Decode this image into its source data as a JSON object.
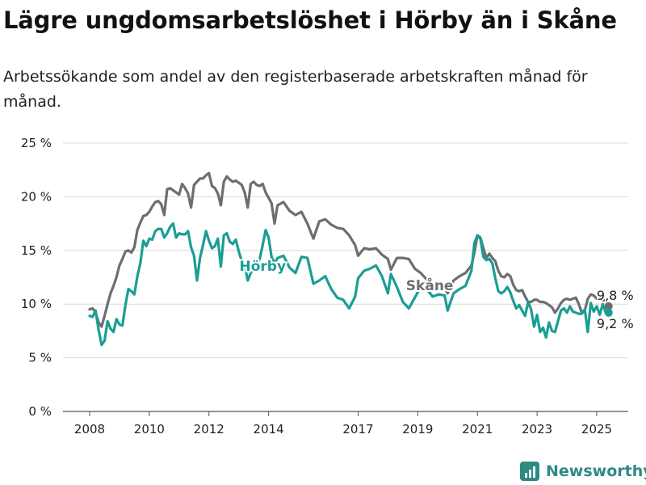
{
  "title": "Lägre ungdomsarbetslöshet i Hörby än i Skåne",
  "subtitle": "Arbetssökande som andel av den registerbaserade arbetskraften månad för månad.",
  "brand": {
    "name": "Newsworthy"
  },
  "chart_data": {
    "type": "line",
    "title": "Lägre ungdomsarbetslöshet i Hörby än i Skåne",
    "subtitle": "Arbetssökande som andel av den registerbaserade arbetskraften månad för månad.",
    "xlabel": "",
    "ylabel": "",
    "ylim": [
      0,
      25
    ],
    "xlim": [
      2007.4,
      2026.0
    ],
    "y_ticks": [
      0,
      5,
      10,
      15,
      20,
      25
    ],
    "y_tick_labels": [
      "0 %",
      "5 %",
      "10 %",
      "15 %",
      "20 %",
      "25 %"
    ],
    "x_ticks": [
      2008,
      2010,
      2012,
      2014,
      2017,
      2019,
      2021,
      2023,
      2025
    ],
    "x_tick_labels": [
      "2008",
      "2010",
      "2012",
      "2014",
      "2017",
      "2019",
      "2021",
      "2023",
      "2025"
    ],
    "grid": "horizontal",
    "legend": "inline labels",
    "series": [
      {
        "name": "Skåne",
        "color": "#6d6d72",
        "end_label": "9,8 %",
        "points": [
          [
            2008.0,
            9.5
          ],
          [
            2008.1,
            9.6
          ],
          [
            2008.2,
            9.2
          ],
          [
            2008.3,
            8.3
          ],
          [
            2008.4,
            7.9
          ],
          [
            2008.5,
            8.9
          ],
          [
            2008.6,
            10.0
          ],
          [
            2008.7,
            11.0
          ],
          [
            2008.8,
            11.7
          ],
          [
            2008.9,
            12.5
          ],
          [
            2009.0,
            13.6
          ],
          [
            2009.1,
            14.2
          ],
          [
            2009.2,
            14.9
          ],
          [
            2009.3,
            15.0
          ],
          [
            2009.4,
            14.8
          ],
          [
            2009.5,
            15.3
          ],
          [
            2009.6,
            16.9
          ],
          [
            2009.7,
            17.6
          ],
          [
            2009.8,
            18.2
          ],
          [
            2009.9,
            18.3
          ],
          [
            2010.0,
            18.6
          ],
          [
            2010.1,
            19.1
          ],
          [
            2010.2,
            19.5
          ],
          [
            2010.3,
            19.6
          ],
          [
            2010.4,
            19.3
          ],
          [
            2010.5,
            18.3
          ],
          [
            2010.6,
            20.7
          ],
          [
            2010.7,
            20.8
          ],
          [
            2010.8,
            20.6
          ],
          [
            2010.9,
            20.4
          ],
          [
            2011.0,
            20.2
          ],
          [
            2011.1,
            21.2
          ],
          [
            2011.2,
            20.8
          ],
          [
            2011.3,
            20.3
          ],
          [
            2011.4,
            19.0
          ],
          [
            2011.5,
            21.1
          ],
          [
            2011.6,
            21.4
          ],
          [
            2011.7,
            21.7
          ],
          [
            2011.8,
            21.7
          ],
          [
            2011.9,
            22.0
          ],
          [
            2012.0,
            22.2
          ],
          [
            2012.1,
            21.0
          ],
          [
            2012.2,
            20.8
          ],
          [
            2012.3,
            20.3
          ],
          [
            2012.4,
            19.2
          ],
          [
            2012.5,
            21.4
          ],
          [
            2012.6,
            21.9
          ],
          [
            2012.7,
            21.6
          ],
          [
            2012.8,
            21.4
          ],
          [
            2012.9,
            21.5
          ],
          [
            2013.0,
            21.3
          ],
          [
            2013.1,
            21.1
          ],
          [
            2013.2,
            20.4
          ],
          [
            2013.3,
            19.0
          ],
          [
            2013.4,
            21.2
          ],
          [
            2013.5,
            21.4
          ],
          [
            2013.6,
            21.1
          ],
          [
            2013.7,
            21.0
          ],
          [
            2013.8,
            21.2
          ],
          [
            2013.9,
            20.4
          ],
          [
            2014.0,
            19.9
          ],
          [
            2014.1,
            19.4
          ],
          [
            2014.2,
            17.5
          ],
          [
            2014.3,
            19.2
          ],
          [
            2014.5,
            19.5
          ],
          [
            2014.7,
            18.7
          ],
          [
            2014.9,
            18.3
          ],
          [
            2015.1,
            18.6
          ],
          [
            2015.3,
            17.5
          ],
          [
            2015.5,
            16.1
          ],
          [
            2015.7,
            17.7
          ],
          [
            2015.9,
            17.9
          ],
          [
            2016.1,
            17.4
          ],
          [
            2016.3,
            17.1
          ],
          [
            2016.5,
            17.0
          ],
          [
            2016.7,
            16.4
          ],
          [
            2016.9,
            15.5
          ],
          [
            2017.0,
            14.5
          ],
          [
            2017.2,
            15.2
          ],
          [
            2017.4,
            15.1
          ],
          [
            2017.6,
            15.2
          ],
          [
            2017.8,
            14.6
          ],
          [
            2018.0,
            14.2
          ],
          [
            2018.1,
            13.2
          ],
          [
            2018.3,
            14.3
          ],
          [
            2018.5,
            14.3
          ],
          [
            2018.7,
            14.2
          ],
          [
            2018.9,
            13.3
          ],
          [
            2019.1,
            12.9
          ],
          [
            2019.3,
            12.3
          ],
          [
            2019.5,
            11.5
          ],
          [
            2019.7,
            11.7
          ],
          [
            2019.9,
            11.5
          ],
          [
            2020.0,
            11.0
          ],
          [
            2020.2,
            12.2
          ],
          [
            2020.4,
            12.6
          ],
          [
            2020.6,
            12.9
          ],
          [
            2020.8,
            13.6
          ],
          [
            2020.9,
            14.8
          ],
          [
            2021.0,
            16.4
          ],
          [
            2021.1,
            16.2
          ],
          [
            2021.2,
            15.2
          ],
          [
            2021.3,
            14.3
          ],
          [
            2021.4,
            14.7
          ],
          [
            2021.5,
            14.3
          ],
          [
            2021.6,
            14.0
          ],
          [
            2021.7,
            13.1
          ],
          [
            2021.8,
            12.6
          ],
          [
            2021.9,
            12.5
          ],
          [
            2022.0,
            12.8
          ],
          [
            2022.1,
            12.6
          ],
          [
            2022.2,
            11.8
          ],
          [
            2022.3,
            11.3
          ],
          [
            2022.4,
            11.2
          ],
          [
            2022.5,
            11.3
          ],
          [
            2022.6,
            10.7
          ],
          [
            2022.7,
            10.2
          ],
          [
            2022.8,
            10.2
          ],
          [
            2022.9,
            10.4
          ],
          [
            2023.0,
            10.4
          ],
          [
            2023.1,
            10.2
          ],
          [
            2023.2,
            10.2
          ],
          [
            2023.3,
            10.1
          ],
          [
            2023.4,
            9.9
          ],
          [
            2023.5,
            9.7
          ],
          [
            2023.6,
            9.2
          ],
          [
            2023.7,
            9.6
          ],
          [
            2023.8,
            10.1
          ],
          [
            2023.9,
            10.4
          ],
          [
            2024.0,
            10.5
          ],
          [
            2024.1,
            10.4
          ],
          [
            2024.2,
            10.5
          ],
          [
            2024.3,
            10.6
          ],
          [
            2024.4,
            10.0
          ],
          [
            2024.5,
            9.2
          ],
          [
            2024.6,
            9.4
          ],
          [
            2024.7,
            10.5
          ],
          [
            2024.8,
            10.9
          ],
          [
            2024.9,
            10.8
          ],
          [
            2025.0,
            10.5
          ],
          [
            2025.1,
            10.6
          ],
          [
            2025.2,
            10.4
          ],
          [
            2025.3,
            10.3
          ],
          [
            2025.4,
            9.8
          ]
        ]
      },
      {
        "name": "Hörby",
        "color": "#1a9e94",
        "end_label": "9,2 %",
        "points": [
          [
            2008.0,
            8.9
          ],
          [
            2008.1,
            8.8
          ],
          [
            2008.2,
            9.4
          ],
          [
            2008.3,
            7.6
          ],
          [
            2008.4,
            6.2
          ],
          [
            2008.5,
            6.6
          ],
          [
            2008.6,
            8.4
          ],
          [
            2008.7,
            7.7
          ],
          [
            2008.8,
            7.4
          ],
          [
            2008.9,
            8.6
          ],
          [
            2009.0,
            8.1
          ],
          [
            2009.1,
            8.0
          ],
          [
            2009.2,
            9.9
          ],
          [
            2009.3,
            11.4
          ],
          [
            2009.4,
            11.2
          ],
          [
            2009.5,
            10.9
          ],
          [
            2009.6,
            12.6
          ],
          [
            2009.7,
            13.8
          ],
          [
            2009.8,
            15.9
          ],
          [
            2009.9,
            15.4
          ],
          [
            2010.0,
            16.1
          ],
          [
            2010.1,
            16.0
          ],
          [
            2010.2,
            16.8
          ],
          [
            2010.3,
            17.0
          ],
          [
            2010.4,
            17.0
          ],
          [
            2010.5,
            16.2
          ],
          [
            2010.6,
            16.6
          ],
          [
            2010.7,
            17.2
          ],
          [
            2010.8,
            17.5
          ],
          [
            2010.9,
            16.2
          ],
          [
            2011.0,
            16.6
          ],
          [
            2011.1,
            16.5
          ],
          [
            2011.2,
            16.5
          ],
          [
            2011.3,
            16.8
          ],
          [
            2011.4,
            15.3
          ],
          [
            2011.5,
            14.5
          ],
          [
            2011.6,
            12.2
          ],
          [
            2011.7,
            14.3
          ],
          [
            2011.8,
            15.5
          ],
          [
            2011.9,
            16.8
          ],
          [
            2012.0,
            15.9
          ],
          [
            2012.1,
            15.2
          ],
          [
            2012.2,
            15.4
          ],
          [
            2012.3,
            16.1
          ],
          [
            2012.4,
            13.5
          ],
          [
            2012.5,
            16.4
          ],
          [
            2012.6,
            16.6
          ],
          [
            2012.7,
            15.8
          ],
          [
            2012.8,
            15.6
          ],
          [
            2012.9,
            16.0
          ],
          [
            2013.0,
            14.9
          ],
          [
            2013.1,
            14.0
          ],
          [
            2013.2,
            13.6
          ],
          [
            2013.3,
            12.2
          ],
          [
            2013.4,
            12.9
          ],
          [
            2013.5,
            13.4
          ],
          [
            2013.6,
            13.8
          ],
          [
            2013.7,
            14.2
          ],
          [
            2013.8,
            15.5
          ],
          [
            2013.9,
            16.9
          ],
          [
            2014.0,
            16.2
          ],
          [
            2014.1,
            14.4
          ],
          [
            2014.2,
            13.8
          ],
          [
            2014.3,
            14.3
          ],
          [
            2014.5,
            14.5
          ],
          [
            2014.7,
            13.4
          ],
          [
            2014.9,
            12.9
          ],
          [
            2015.1,
            14.4
          ],
          [
            2015.3,
            14.3
          ],
          [
            2015.5,
            11.9
          ],
          [
            2015.7,
            12.2
          ],
          [
            2015.9,
            12.6
          ],
          [
            2016.1,
            11.4
          ],
          [
            2016.3,
            10.6
          ],
          [
            2016.5,
            10.4
          ],
          [
            2016.7,
            9.6
          ],
          [
            2016.9,
            10.7
          ],
          [
            2017.0,
            12.4
          ],
          [
            2017.2,
            13.1
          ],
          [
            2017.4,
            13.3
          ],
          [
            2017.6,
            13.6
          ],
          [
            2017.8,
            12.6
          ],
          [
            2018.0,
            11.0
          ],
          [
            2018.1,
            12.8
          ],
          [
            2018.3,
            11.6
          ],
          [
            2018.5,
            10.2
          ],
          [
            2018.7,
            9.6
          ],
          [
            2018.9,
            10.6
          ],
          [
            2019.1,
            11.6
          ],
          [
            2019.3,
            11.4
          ],
          [
            2019.5,
            10.7
          ],
          [
            2019.7,
            10.9
          ],
          [
            2019.9,
            10.8
          ],
          [
            2020.0,
            9.4
          ],
          [
            2020.2,
            11.0
          ],
          [
            2020.4,
            11.4
          ],
          [
            2020.6,
            11.7
          ],
          [
            2020.8,
            13.1
          ],
          [
            2020.9,
            15.7
          ],
          [
            2021.0,
            16.4
          ],
          [
            2021.1,
            16.1
          ],
          [
            2021.2,
            14.4
          ],
          [
            2021.3,
            14.1
          ],
          [
            2021.4,
            14.2
          ],
          [
            2021.5,
            13.8
          ],
          [
            2021.6,
            12.4
          ],
          [
            2021.7,
            11.2
          ],
          [
            2021.8,
            11.0
          ],
          [
            2021.9,
            11.2
          ],
          [
            2022.0,
            11.6
          ],
          [
            2022.1,
            11.1
          ],
          [
            2022.2,
            10.3
          ],
          [
            2022.3,
            9.6
          ],
          [
            2022.4,
            9.9
          ],
          [
            2022.5,
            9.4
          ],
          [
            2022.6,
            8.9
          ],
          [
            2022.7,
            10.2
          ],
          [
            2022.8,
            9.5
          ],
          [
            2022.9,
            7.9
          ],
          [
            2023.0,
            9.0
          ],
          [
            2023.1,
            7.4
          ],
          [
            2023.2,
            7.8
          ],
          [
            2023.3,
            6.9
          ],
          [
            2023.4,
            8.3
          ],
          [
            2023.5,
            7.5
          ],
          [
            2023.6,
            7.4
          ],
          [
            2023.7,
            8.4
          ],
          [
            2023.8,
            9.4
          ],
          [
            2023.9,
            9.6
          ],
          [
            2024.0,
            9.2
          ],
          [
            2024.1,
            9.8
          ],
          [
            2024.2,
            9.3
          ],
          [
            2024.3,
            9.2
          ],
          [
            2024.4,
            9.1
          ],
          [
            2024.5,
            9.1
          ],
          [
            2024.6,
            9.5
          ],
          [
            2024.7,
            7.4
          ],
          [
            2024.8,
            10.1
          ],
          [
            2024.9,
            9.3
          ],
          [
            2025.0,
            9.8
          ],
          [
            2025.1,
            9.0
          ],
          [
            2025.2,
            10.0
          ],
          [
            2025.3,
            9.2
          ],
          [
            2025.4,
            9.2
          ]
        ]
      }
    ]
  }
}
